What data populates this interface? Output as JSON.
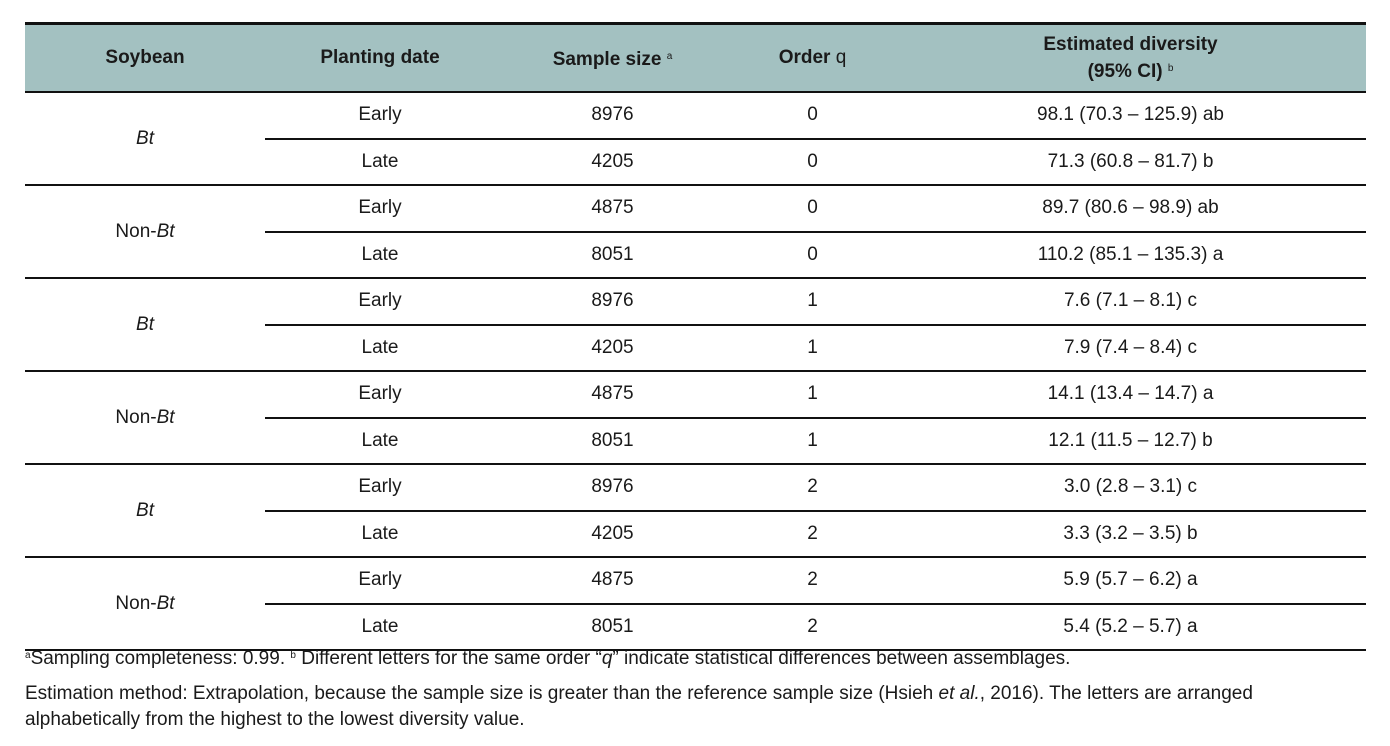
{
  "table": {
    "header": {
      "soybean": "Soybean",
      "planting_date": "Planting date",
      "sample_size": "Sample size",
      "sample_size_note": "a",
      "order": "Order",
      "order_symbol": "q",
      "diversity": "Estimated diversity",
      "diversity_ci": "(95% CI)",
      "diversity_note": "b"
    },
    "groups": [
      {
        "soybean": {
          "italic": "Bt"
        },
        "rows": [
          [
            "Early",
            8976,
            0,
            "98.1 (70.3 – 125.9) ab"
          ],
          [
            "Late",
            4205,
            0,
            "71.3 (60.8 – 81.7) b"
          ]
        ]
      },
      {
        "soybean": {
          "prefix": "Non-",
          "italic": "Bt"
        },
        "rows": [
          [
            "Early",
            4875,
            0,
            "89.7 (80.6 – 98.9) ab"
          ],
          [
            "Late",
            8051,
            0,
            "110.2 (85.1 – 135.3) a"
          ]
        ]
      },
      {
        "soybean": {
          "italic": "Bt"
        },
        "rows": [
          [
            "Early",
            8976,
            1,
            "7.6 (7.1 – 8.1) c"
          ],
          [
            "Late",
            4205,
            1,
            "7.9 (7.4 – 8.4) c"
          ]
        ]
      },
      {
        "soybean": {
          "prefix": "Non-",
          "italic": "Bt"
        },
        "rows": [
          [
            "Early",
            4875,
            1,
            "14.1 (13.4 – 14.7) a"
          ],
          [
            "Late",
            8051,
            1,
            "12.1 (11.5 – 12.7) b"
          ]
        ]
      },
      {
        "soybean": {
          "italic": "Bt"
        },
        "rows": [
          [
            "Early",
            8976,
            2,
            "3.0 (2.8 – 3.1) c"
          ],
          [
            "Late",
            4205,
            2,
            "3.3 (3.2 – 3.5) b"
          ]
        ]
      },
      {
        "soybean": {
          "prefix": "Non-",
          "italic": "Bt"
        },
        "rows": [
          [
            "Early",
            4875,
            2,
            "5.9 (5.7 – 6.2) a"
          ],
          [
            "Late",
            8051,
            2,
            "5.4 (5.2 – 5.7) a"
          ]
        ]
      }
    ]
  },
  "footnotes": [
    [
      {
        "text": "a",
        "style": "sup"
      },
      {
        "text": "Sampling completeness: 0.99. ",
        "style": "normal"
      },
      {
        "text": "b",
        "style": "sup"
      },
      {
        "text": " Different letters for the same order “",
        "style": "normal"
      },
      {
        "text": "q",
        "style": "italic"
      },
      {
        "text": "” indicate statistical differences between assemblages.",
        "style": "normal"
      }
    ],
    [
      {
        "text": "Estimation method: Extrapolation, because the sample size is greater than the reference sample size (Hsieh ",
        "style": "normal"
      },
      {
        "text": "et al.",
        "style": "italic"
      },
      {
        "text": ", 2016). The letters are arranged alphabetically from the highest to the lowest diversity value.",
        "style": "normal"
      }
    ]
  ]
}
